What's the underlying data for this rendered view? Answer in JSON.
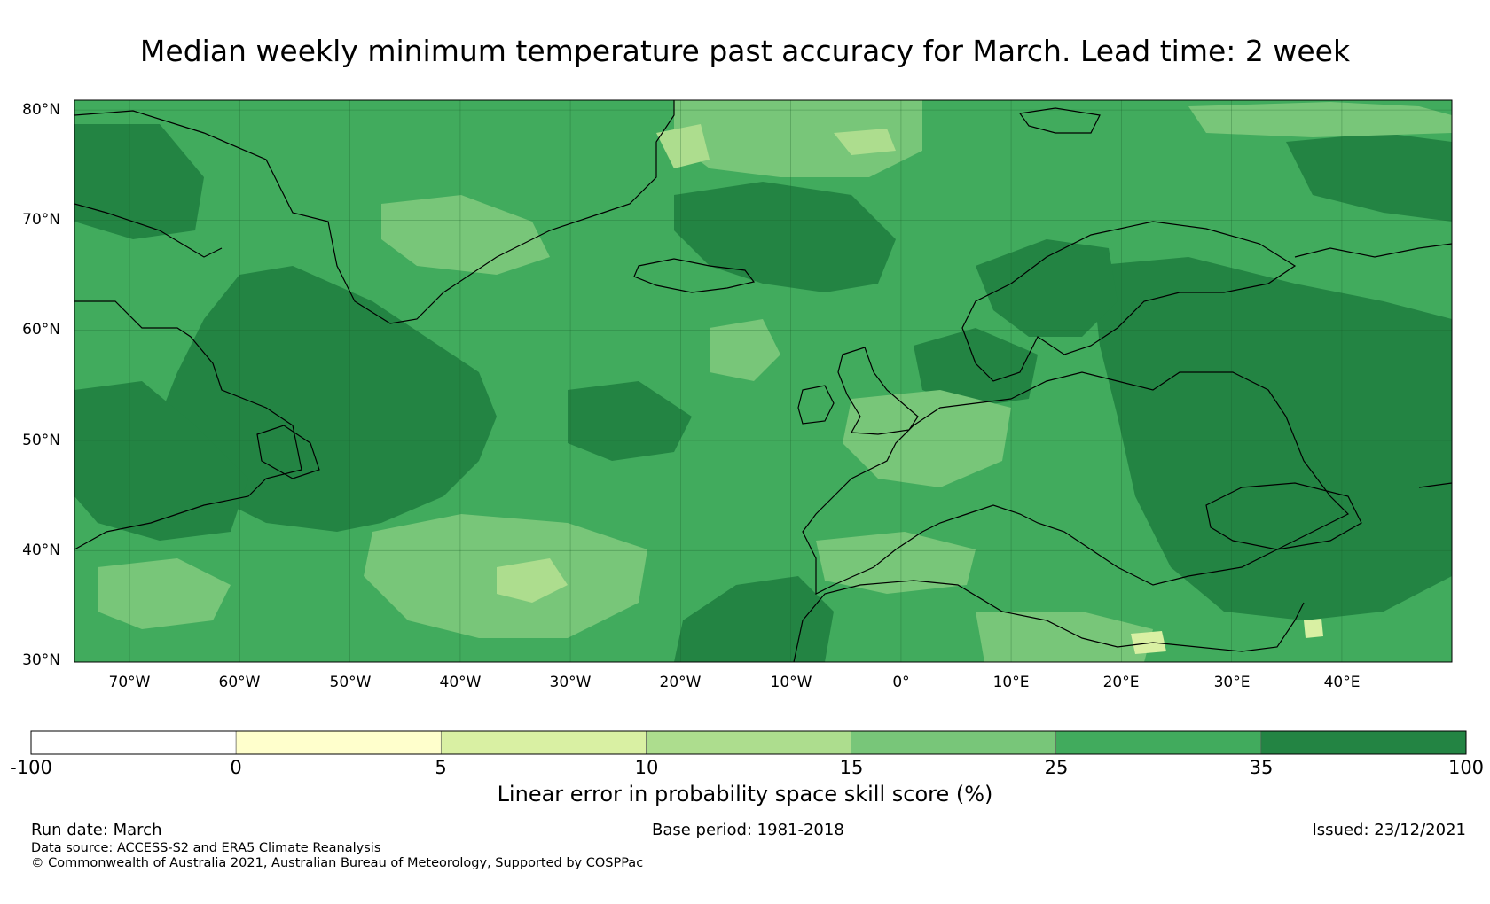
{
  "title": "Median weekly minimum temperature past accuracy for March. Lead time: 2 week",
  "map": {
    "lat_labels": [
      "80°N",
      "70°N",
      "60°N",
      "50°N",
      "40°N",
      "30°N"
    ],
    "lon_labels": [
      "70°W",
      "60°W",
      "50°W",
      "40°W",
      "30°W",
      "20°W",
      "10°W",
      "0°",
      "10°E",
      "20°E",
      "30°E",
      "40°E"
    ],
    "lat_range": [
      30,
      81
    ],
    "lon_range": [
      -75,
      50
    ],
    "colors": {
      "c25_35": "#41ab5d",
      "c35_100": "#238443",
      "c15_25": "#78c679",
      "c10_15": "#addd8e",
      "c5_10": "#d9f0a3",
      "c0_5": "#ffffcc"
    }
  },
  "colorbar": {
    "ticks": [
      "-100",
      "0",
      "5",
      "10",
      "15",
      "25",
      "35",
      "100"
    ],
    "colors": [
      "#ffffff",
      "#ffffcc",
      "#d9f0a3",
      "#addd8e",
      "#78c679",
      "#41ab5d",
      "#238443"
    ],
    "label": "Linear error in probability space skill score (%)"
  },
  "footer": {
    "run_date": "Run date: March",
    "base_period": "Base period: 1981-2018",
    "issued": "Issued: 23/12/2021",
    "data_source": "Data source: ACCESS-S2 and ERA5 Climate Reanalysis",
    "copyright": "© Commonwealth of Australia 2021, Australian Bureau of Meteorology, Supported by COSPPac"
  }
}
